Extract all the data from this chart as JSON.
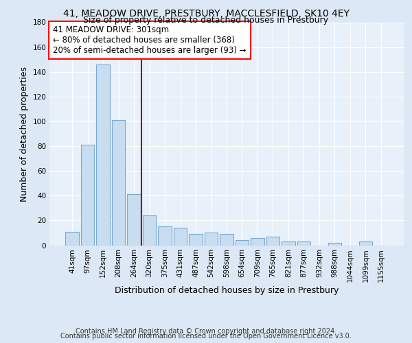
{
  "title": "41, MEADOW DRIVE, PRESTBURY, MACCLESFIELD, SK10 4EY",
  "subtitle": "Size of property relative to detached houses in Prestbury",
  "xlabel": "Distribution of detached houses by size in Prestbury",
  "ylabel": "Number of detached properties",
  "categories": [
    "41sqm",
    "97sqm",
    "152sqm",
    "208sqm",
    "264sqm",
    "320sqm",
    "375sqm",
    "431sqm",
    "487sqm",
    "542sqm",
    "598sqm",
    "654sqm",
    "709sqm",
    "765sqm",
    "821sqm",
    "877sqm",
    "932sqm",
    "988sqm",
    "1044sqm",
    "1099sqm",
    "1155sqm"
  ],
  "values": [
    11,
    81,
    146,
    101,
    41,
    24,
    15,
    14,
    9,
    10,
    9,
    4,
    6,
    7,
    3,
    3,
    0,
    2,
    0,
    3,
    0
  ],
  "bar_color": "#c8ddf0",
  "bar_edge_color": "#7aaacf",
  "red_line_x": 4.5,
  "annotation_line1": "41 MEADOW DRIVE: 301sqm",
  "annotation_line2": "← 80% of detached houses are smaller (368)",
  "annotation_line3": "20% of semi-detached houses are larger (93) →",
  "annotation_box_color": "white",
  "annotation_box_edge_color": "red",
  "red_line_color": "#8b0000",
  "ylim": [
    0,
    180
  ],
  "yticks": [
    0,
    20,
    40,
    60,
    80,
    100,
    120,
    140,
    160,
    180
  ],
  "footer_line1": "Contains HM Land Registry data © Crown copyright and database right 2024.",
  "footer_line2": "Contains public sector information licensed under the Open Government Licence v3.0.",
  "bg_color": "#dce8f5",
  "plot_bg_color": "#e8f0fa",
  "title_fontsize": 10,
  "subtitle_fontsize": 9,
  "axis_label_fontsize": 9,
  "tick_fontsize": 7.5,
  "annotation_fontsize": 8.5,
  "footer_fontsize": 7
}
